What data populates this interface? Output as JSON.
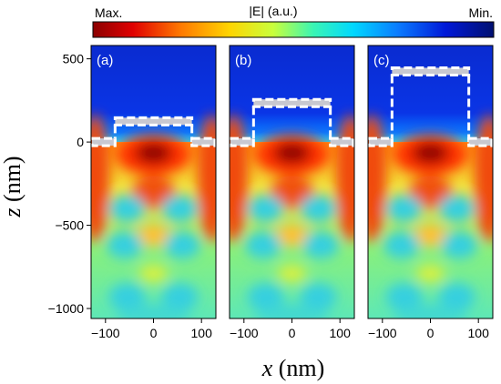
{
  "colorbar": {
    "label": "|E| (a.u.)",
    "max_label": "Max.",
    "min_label": "Min.",
    "colormap": [
      "#8b0000",
      "#e00000",
      "#ff7a00",
      "#ffd400",
      "#c8ff3c",
      "#39f5b4",
      "#00d8ff",
      "#0a7cff",
      "#0018d8",
      "#001070"
    ]
  },
  "chart_data": {
    "type": "heatmap",
    "xlabel_var": "x",
    "xlabel_unit": " (nm)",
    "ylabel_var": "z",
    "ylabel_unit": " (nm)",
    "x_range": [
      -130,
      130
    ],
    "y_range": [
      -1060,
      580
    ],
    "x_ticks": [
      -100,
      0,
      100
    ],
    "x_tick_labels": [
      "−100",
      "0",
      "100"
    ],
    "y_ticks": [
      500,
      0,
      -500,
      -1000
    ],
    "y_tick_labels": [
      "500",
      "0",
      "−500",
      "−1000"
    ],
    "panels": [
      {
        "label": "(a)",
        "structure_top_z": 130
      },
      {
        "label": "(b)",
        "structure_top_z": 240
      },
      {
        "label": "(c)",
        "structure_top_z": 430
      }
    ],
    "structure_half_width": 80,
    "substrate_z": 0
  }
}
